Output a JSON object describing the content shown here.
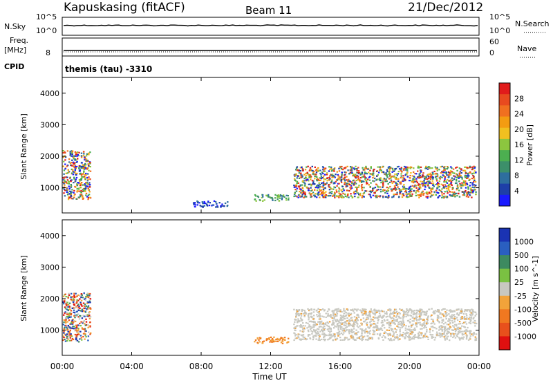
{
  "header": {
    "station": "Kapuskasing (fitACF)",
    "beam": "Beam 11",
    "date": "21/Dec/2012"
  },
  "top_panels": {
    "nsky_label": "N.Sky",
    "nsearch_label": "N.Search",
    "freq_label_1": "Freq.",
    "freq_label_2": "[MHz]",
    "nave_label": "Nave",
    "cpid_label": "CPID",
    "noise_ticks_left": [
      "10^5",
      "10^0"
    ],
    "noise_ticks_right": [
      "10^5",
      "10^0"
    ],
    "freq_ticks_left": [
      "8"
    ],
    "nave_ticks_right": [
      "60",
      "0"
    ],
    "cpid_text": "themis (tau) -3310"
  },
  "colors": {
    "power_scale": [
      "#1a1aff",
      "#1e3fa8",
      "#2e6e9e",
      "#3c8f6a",
      "#4caf50",
      "#8cc63f",
      "#f0c020",
      "#f39c12",
      "#f07020",
      "#e84a1f",
      "#e11b1b"
    ],
    "velocity_scale": [
      "#1a33b3",
      "#2a5fc0",
      "#3d8a60",
      "#7ac142",
      "#c8c8c0",
      "#f2a33a",
      "#f07820",
      "#e8501c",
      "#e01010"
    ]
  },
  "chart_data": [
    {
      "type": "heatmap",
      "name": "power",
      "ylabel": "Slant Range [km]",
      "xlabel": "Time UT",
      "x_ticks": [
        "00:00",
        "04:00",
        "08:00",
        "12:00",
        "16:00",
        "20:00",
        "00:00"
      ],
      "y_ticks": [
        "1000",
        "2000",
        "3000",
        "4000"
      ],
      "ylim": [
        200,
        4500
      ],
      "colorbar": {
        "label": "Power [dB]",
        "ticks": [
          "4",
          "8",
          "12",
          "16",
          "20",
          "24",
          "28"
        ],
        "range": [
          0,
          32
        ]
      },
      "echo_regions": [
        {
          "t_start": 0.0,
          "t_end": 1.6,
          "r_low": 650,
          "r_high": 2200,
          "level": "high"
        },
        {
          "t_start": 13.3,
          "t_end": 23.8,
          "r_low": 700,
          "r_high": 1700,
          "level": "high"
        },
        {
          "t_start": 11.0,
          "t_end": 13.0,
          "r_low": 600,
          "r_high": 800,
          "level": "medium"
        },
        {
          "t_start": 7.5,
          "t_end": 9.5,
          "r_low": 400,
          "r_high": 600,
          "level": "low"
        }
      ]
    },
    {
      "type": "heatmap",
      "name": "velocity",
      "ylabel": "Slant Range [km]",
      "xlabel": "Time UT",
      "x_ticks": [
        "00:00",
        "04:00",
        "08:00",
        "12:00",
        "16:00",
        "20:00",
        "00:00"
      ],
      "y_ticks": [
        "1000",
        "2000",
        "3000",
        "4000"
      ],
      "ylim": [
        200,
        4500
      ],
      "colorbar": {
        "label": "Velocity [m s^-1]",
        "ticks": [
          "1000",
          "500",
          "100",
          "25",
          "-25",
          "-100",
          "-500",
          "-1000"
        ]
      },
      "echo_regions": [
        {
          "t_start": 0.0,
          "t_end": 1.6,
          "r_low": 650,
          "r_high": 2200,
          "level": "mixed"
        },
        {
          "t_start": 13.3,
          "t_end": 23.8,
          "r_low": 700,
          "r_high": 1700,
          "level": "ground"
        },
        {
          "t_start": 11.0,
          "t_end": 13.0,
          "r_low": 600,
          "r_high": 800,
          "level": "negative"
        }
      ]
    }
  ]
}
